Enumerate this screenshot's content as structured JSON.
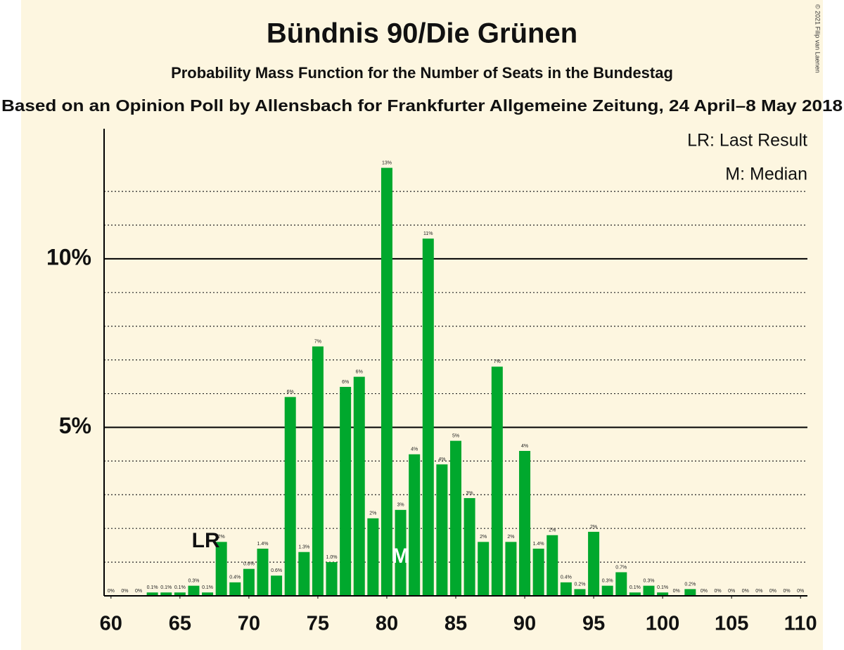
{
  "chart_data": {
    "type": "bar",
    "title": "Bündnis 90/Die Grünen",
    "subtitle": "Probability Mass Function for the Number of Seats in the Bundestag",
    "source": "Based on an Opinion Poll by Allensbach for Frankfurter Allgemeine Zeitung, 24 April–8 May 2018",
    "copyright": "© 2021 Filip van Laenen",
    "legend_texts": [
      "LR: Last Result",
      "M: Median"
    ],
    "annotations": [
      {
        "x": 68,
        "label": "LR"
      },
      {
        "x": 81,
        "label": "M"
      }
    ],
    "color": "#00a82d",
    "x": [
      60,
      61,
      62,
      63,
      64,
      65,
      66,
      67,
      68,
      69,
      70,
      71,
      72,
      73,
      74,
      75,
      76,
      77,
      78,
      79,
      80,
      81,
      82,
      83,
      84,
      85,
      86,
      87,
      88,
      89,
      90,
      91,
      92,
      93,
      94,
      95,
      96,
      97,
      98,
      99,
      100,
      101,
      102,
      103,
      104,
      105,
      106,
      107,
      108,
      109,
      110
    ],
    "values": [
      0,
      0,
      0,
      0.1,
      0.1,
      0.1,
      0.3,
      0.1,
      1.6,
      0.4,
      0.8,
      1.4,
      0.6,
      5.9,
      1.3,
      7.4,
      1.0,
      6.2,
      6.5,
      2.3,
      12.7,
      2.55,
      4.2,
      10.6,
      3.9,
      4.6,
      2.9,
      1.6,
      6.8,
      1.6,
      4.3,
      1.4,
      1.8,
      0.4,
      0.2,
      1.9,
      0.3,
      0.7,
      0.1,
      0.3,
      0.1,
      0,
      0.2,
      0,
      0,
      0,
      0,
      0,
      0,
      0,
      0
    ],
    "value_labels": [
      "0%",
      "0%",
      "0%",
      "0.1%",
      "0.1%",
      "0.1%",
      "0.3%",
      "0.1%",
      "2%",
      "0.4%",
      "0.8%",
      "1.4%",
      "0.6%",
      "6%",
      "1.3%",
      "7%",
      "1.0%",
      "6%",
      "6%",
      "2%",
      "13%",
      "3%",
      "4%",
      "11%",
      "4%",
      "5%",
      "3%",
      "2%",
      "7%",
      "2%",
      "4%",
      "1.4%",
      "2%",
      "0.4%",
      "0.2%",
      "2%",
      "0.3%",
      "0.7%",
      "0.1%",
      "0.3%",
      "0.1%",
      "0%",
      "0.2%",
      "0%",
      "0%",
      "0%",
      "0%",
      "0%",
      "0%",
      "0%",
      "0%"
    ],
    "xlim": [
      59.5,
      110.5
    ],
    "xticks": [
      60,
      65,
      70,
      75,
      80,
      85,
      90,
      95,
      100,
      105,
      110
    ],
    "ylim": [
      0,
      13.86
    ],
    "yticks": [
      {
        "value": 5,
        "label": "5%"
      },
      {
        "value": 10,
        "label": "10%"
      }
    ],
    "minor_yticks": [
      1,
      2,
      3,
      4,
      6,
      7,
      8,
      9,
      11,
      12
    ],
    "grid": true
  }
}
